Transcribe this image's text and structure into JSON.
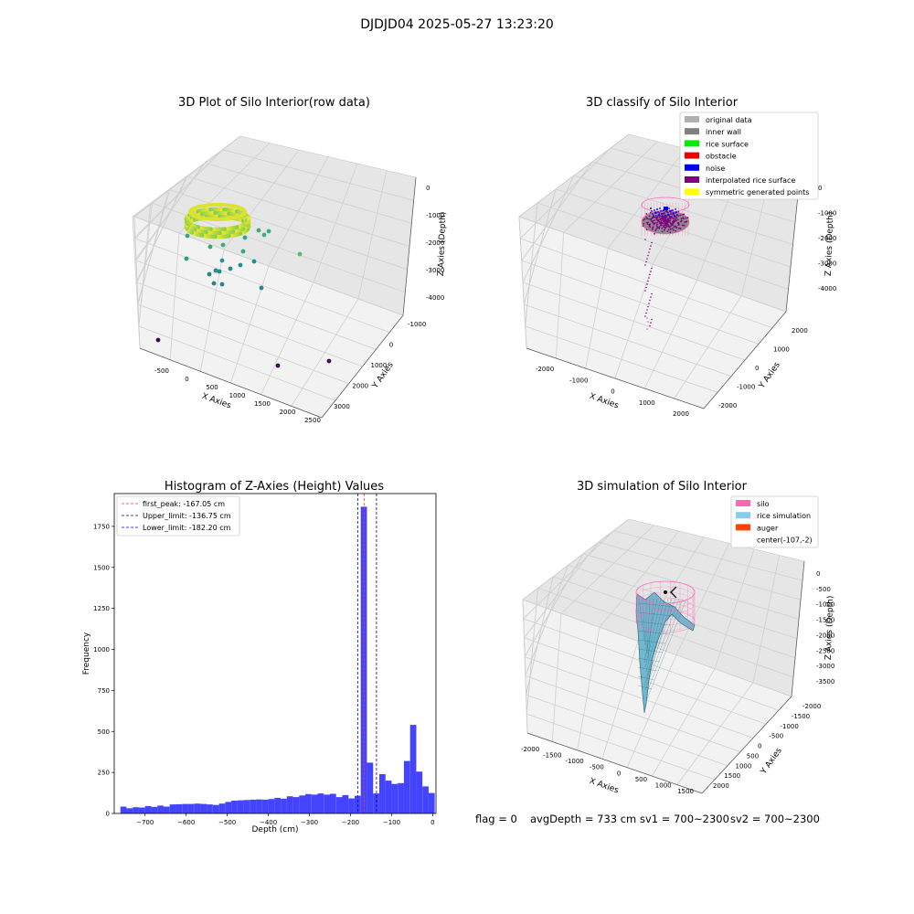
{
  "figure": {
    "suptitle": "DJDJD04 2025-05-27 13:23:20",
    "footer": {
      "flag": "flag = 0",
      "avg_depth": "avgDepth = 733 cm",
      "sv1": "sv1 = 700~2300",
      "sv2": "sv2 = 700~2300"
    }
  },
  "chart_data": [
    {
      "type": "scatter",
      "title": "3D Plot of Silo Interior(row data)",
      "xlabel": "X Axies",
      "ylabel": "Y Axies",
      "zlabel": "Z Axies (Depth)",
      "x_ticks": [
        "-500",
        "0",
        "500",
        "1000",
        "1500",
        "2000",
        "2500"
      ],
      "y_ticks": [
        "-1000",
        "0",
        "1000",
        "2000",
        "3000"
      ],
      "z_ticks": [
        "0",
        "-1000",
        "-2000",
        "-3000",
        "-4000"
      ],
      "colormap": "viridis (colored by depth)"
    },
    {
      "type": "scatter",
      "title": "3D classify of Silo Interior",
      "xlabel": "X Axies",
      "ylabel": "Y Axies",
      "zlabel": "Z Axies (Depth)",
      "x_ticks": [
        "-2000",
        "-1000",
        "0",
        "1000",
        "2000"
      ],
      "y_ticks": [
        "-2000",
        "-1000",
        "0",
        "1000",
        "2000"
      ],
      "z_ticks": [
        "0",
        "-1000",
        "-2000",
        "-3000",
        "-4000"
      ],
      "legend": [
        {
          "label": "original data",
          "color": "#b0b0b0"
        },
        {
          "label": "inner wall",
          "color": "#808080"
        },
        {
          "label": "rice surface",
          "color": "#00ee00"
        },
        {
          "label": "obstacle",
          "color": "#ee0000"
        },
        {
          "label": "noise",
          "color": "#0000ee"
        },
        {
          "label": "interpolated rice surface",
          "color": "#800080"
        },
        {
          "label": "symmetric generated points",
          "color": "#ffff00"
        }
      ],
      "legend_position": "top-right"
    },
    {
      "type": "bar",
      "title": "Histogram of Z-Axies (Height) Values",
      "xlabel": "Depth (cm)",
      "ylabel": "Frequency",
      "xlim": [
        -775,
        8
      ],
      "ylim": [
        0,
        1950
      ],
      "x_ticks": [
        -700,
        -600,
        -500,
        -400,
        -300,
        -200,
        -100,
        0
      ],
      "y_ticks": [
        0,
        250,
        500,
        750,
        1000,
        1250,
        1500,
        1750
      ],
      "bar_color": "#4444ff",
      "bin_width": 15,
      "bins_start": -760,
      "values": [
        42,
        32,
        38,
        36,
        45,
        40,
        48,
        42,
        55,
        56,
        58,
        58,
        60,
        58,
        55,
        52,
        60,
        70,
        78,
        80,
        82,
        84,
        86,
        84,
        88,
        95,
        90,
        105,
        100,
        110,
        118,
        115,
        122,
        115,
        120,
        100,
        112,
        92,
        108,
        1870,
        310,
        122,
        240,
        200,
        180,
        185,
        320,
        540,
        255,
        165,
        125
      ],
      "vlines": [
        {
          "label": "first_peak: -167.05 cm",
          "x": -167.05,
          "color": "#ff3333",
          "dash": "3,2"
        },
        {
          "label": "Upper_limit: -136.75 cm",
          "x": -136.75,
          "color": "#000088",
          "dash": "3,2"
        },
        {
          "label": "Lower_limit: -182.20 cm",
          "x": -182.2,
          "color": "#0000ff",
          "dash": "3,2"
        }
      ],
      "legend_position": "top-left"
    },
    {
      "type": "surface",
      "title": "3D simulation of Silo Interior",
      "xlabel": "X Axies",
      "ylabel": "Y Axies",
      "zlabel": "Z Axies (Depth)",
      "x_ticks": [
        "-2000",
        "-1500",
        "-1000",
        "-500",
        "0",
        "500",
        "1000",
        "1500"
      ],
      "y_ticks": [
        "-2000",
        "-1500",
        "-1000",
        "-500",
        "0",
        "500",
        "1000",
        "1500",
        "2000"
      ],
      "z_ticks": [
        "0",
        "-500",
        "-1000",
        "-1500",
        "-2000",
        "-2500",
        "-3000",
        "-3500"
      ],
      "legend": [
        {
          "label": "silo",
          "color": "#ff69b4"
        },
        {
          "label": "rice simulation",
          "color": "#87ceeb"
        },
        {
          "label": "auger",
          "color": "#ff4500"
        },
        {
          "label": "center(-107,-2)",
          "color": ""
        }
      ],
      "legend_position": "top-right"
    }
  ]
}
